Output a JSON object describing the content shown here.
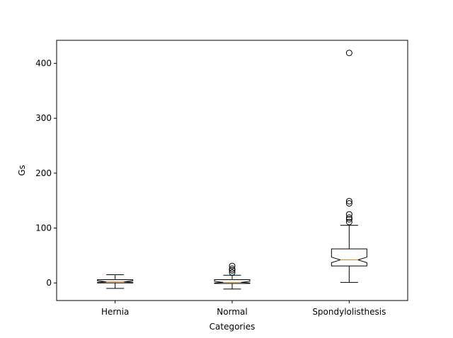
{
  "chart_data": {
    "type": "boxplot",
    "title": "",
    "xlabel": "Categories",
    "ylabel": "Gs",
    "ylim": [
      -32,
      442
    ],
    "yticks": [
      0,
      100,
      200,
      300,
      400
    ],
    "notched": true,
    "categories": [
      "Hernia",
      "Normal",
      "Spondylolisthesis"
    ],
    "boxes": [
      {
        "category": "Hernia",
        "whisker_low": -10,
        "q1": 0,
        "median": 2,
        "q3": 6,
        "whisker_high": 15,
        "notch_low": 1,
        "notch_high": 4,
        "outliers": []
      },
      {
        "category": "Normal",
        "whisker_low": -11,
        "q1": -1,
        "median": 1,
        "q3": 6,
        "whisker_high": 14,
        "notch_low": 0,
        "notch_high": 3,
        "outliers": [
          19,
          23,
          26,
          31
        ]
      },
      {
        "category": "Spondylolisthesis",
        "whisker_low": 1,
        "q1": 31,
        "median": 42,
        "q3": 62,
        "whisker_high": 105,
        "notch_low": 37,
        "notch_high": 47,
        "outliers": [
          111,
          116,
          119,
          125,
          145,
          149,
          419
        ]
      }
    ],
    "colors": {
      "box": "#000000",
      "median": "#ff7f0e",
      "flier": "#000000"
    },
    "grid": false,
    "legend": "none"
  }
}
